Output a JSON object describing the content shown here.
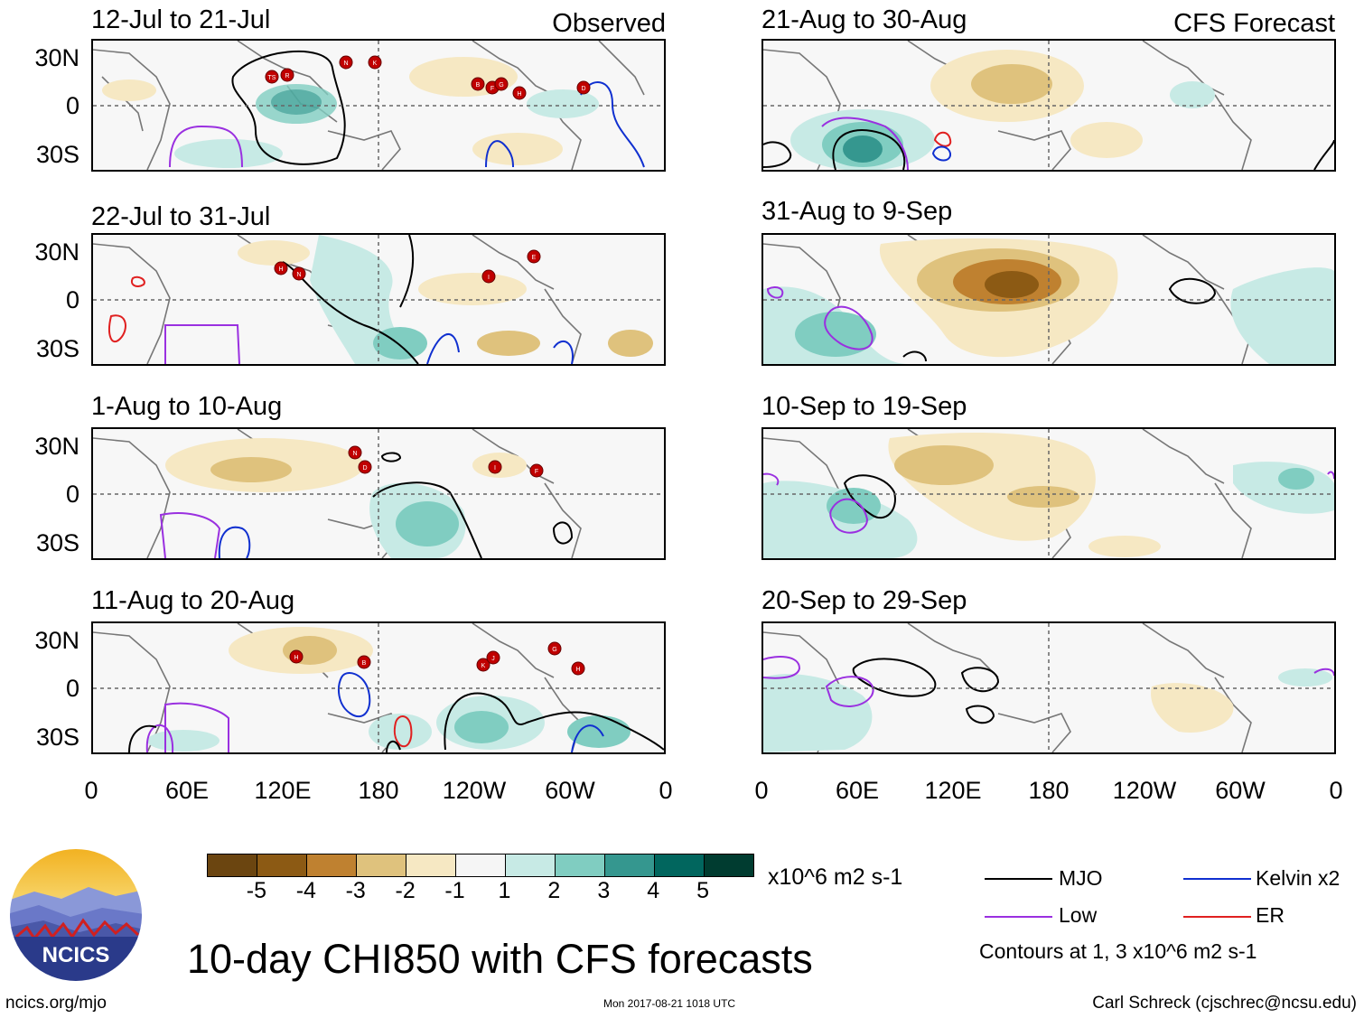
{
  "panels": [
    {
      "title": "12-Jul to 21-Jul",
      "tag": "Observed"
    },
    {
      "title": "22-Jul to 31-Jul"
    },
    {
      "title": "1-Aug to 10-Aug"
    },
    {
      "title": "11-Aug to 20-Aug"
    },
    {
      "title": "21-Aug to 30-Aug",
      "tag": "CFS Forecast"
    },
    {
      "title": "31-Aug to 9-Sep"
    },
    {
      "title": "10-Sep to 19-Sep"
    },
    {
      "title": "20-Sep to 29-Sep"
    }
  ],
  "axes": {
    "lat_labels": [
      "30N",
      "0",
      "30S"
    ],
    "lon_labels": [
      "0",
      "60E",
      "120E",
      "180",
      "120W",
      "60W",
      "0"
    ]
  },
  "colorbar": {
    "colors": [
      "#6b4510",
      "#8c5a14",
      "#bf8130",
      "#dfc27d",
      "#f6e8c3",
      "#f5f5f5",
      "#c7eae5",
      "#80cdc1",
      "#35978f",
      "#01665e",
      "#003c30"
    ],
    "ticks": [
      "-5",
      "-4",
      "-3",
      "-2",
      "-1",
      "1",
      "2",
      "3",
      "4",
      "5"
    ],
    "units": "x10^6 m2 s-1"
  },
  "legend": {
    "items": [
      {
        "label": "MJO",
        "color": "#000000"
      },
      {
        "label": "Kelvin x2",
        "color": "#1030d0"
      },
      {
        "label": "Low",
        "color": "#9a30e0"
      },
      {
        "label": "ER",
        "color": "#e02020"
      }
    ],
    "note": "Contours at 1, 3 x10^6 m2 s-1"
  },
  "title": "10-day CHI850 with CFS forecasts",
  "logo_text": "NCICS",
  "footer": {
    "url": "ncics.org/mjo",
    "timestamp": "Mon 2017-08-21 1018 UTC",
    "author": "Carl Schreck (cjschrec@ncsu.edu)"
  },
  "storms": [
    [
      "TS",
      "R",
      "N",
      "K",
      "B",
      "F",
      "G",
      "H",
      "D"
    ],
    [
      "H",
      "N",
      "I",
      "E"
    ],
    [
      "N",
      "D",
      "I",
      "F"
    ],
    [
      "H",
      "B",
      "K",
      "J",
      "G",
      "H"
    ]
  ]
}
